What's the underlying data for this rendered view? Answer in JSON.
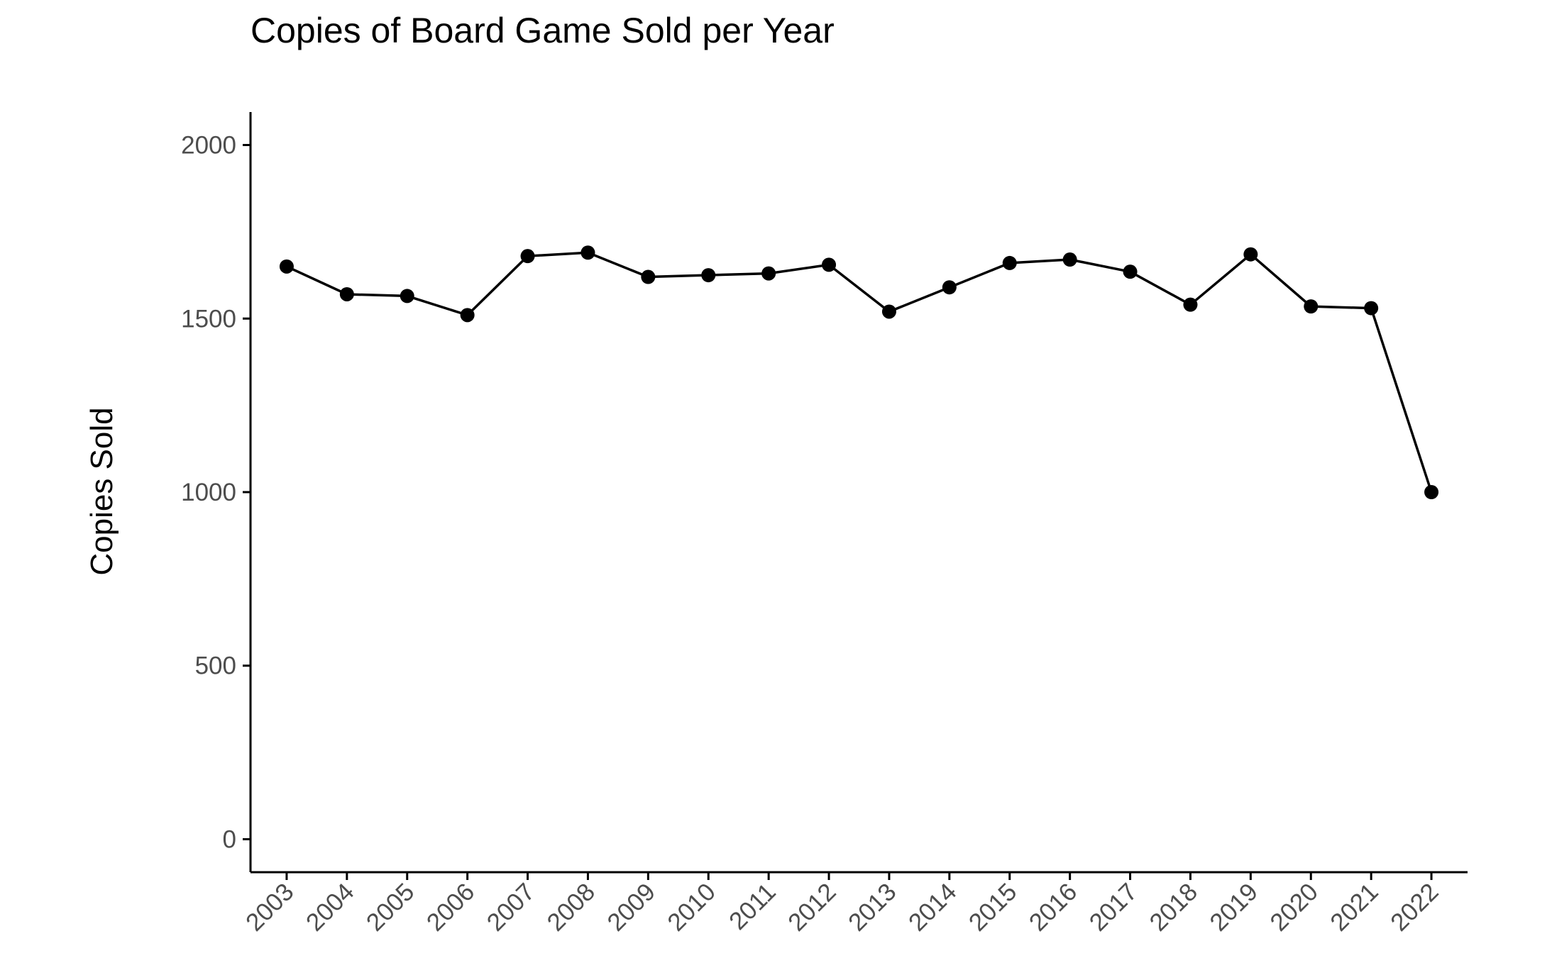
{
  "chart_data": {
    "type": "line",
    "title": "Copies of Board Game Sold per Year",
    "xlabel": "",
    "ylabel": "Copies Sold",
    "categories": [
      "2003",
      "2004",
      "2005",
      "2006",
      "2007",
      "2008",
      "2009",
      "2010",
      "2011",
      "2012",
      "2013",
      "2014",
      "2015",
      "2016",
      "2017",
      "2018",
      "2019",
      "2020",
      "2021",
      "2022"
    ],
    "series": [
      {
        "values": [
          1650,
          1570,
          1565,
          1510,
          1680,
          1690,
          1620,
          1625,
          1630,
          1655,
          1520,
          1590,
          1660,
          1670,
          1635,
          1540,
          1685,
          1535,
          1530,
          1000
        ]
      }
    ],
    "ylim": [
      -95,
      2095
    ],
    "yticks": [
      0,
      500,
      1000,
      1500,
      2000
    ],
    "grid": false,
    "legend": "none",
    "colors": {
      "line": "#000000",
      "points": "#000000",
      "axis": "#000000",
      "tick_label": "#4d4d4d"
    }
  }
}
